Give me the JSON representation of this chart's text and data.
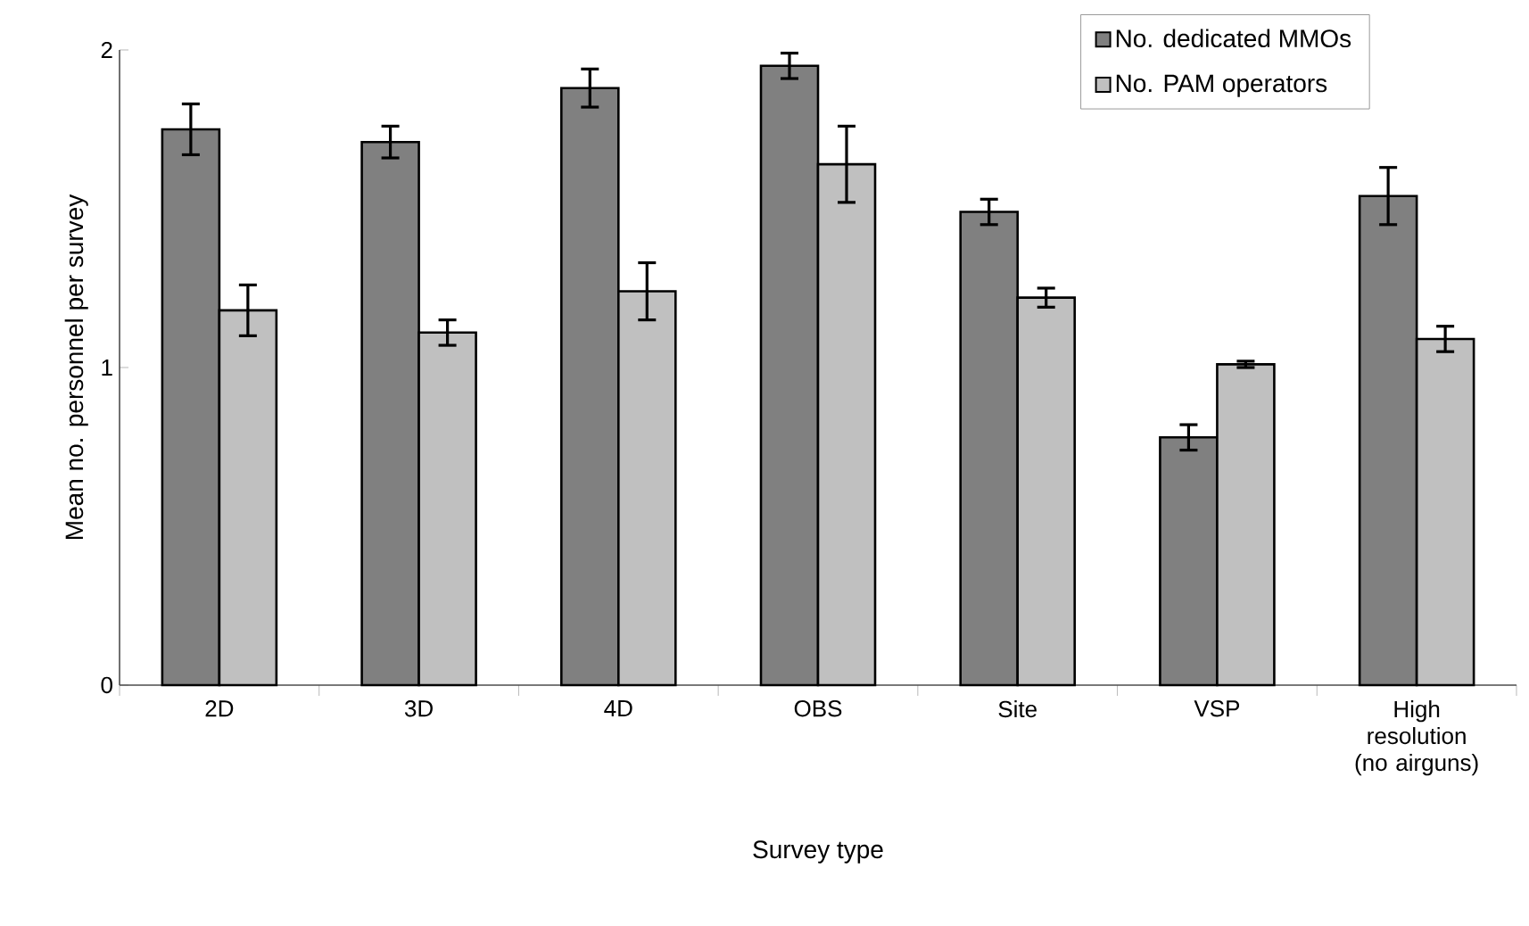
{
  "chart_data": {
    "type": "bar",
    "xlabel": "Survey type",
    "ylabel": "Mean no. personnel per survey",
    "categories": [
      "2D",
      "3D",
      "4D",
      "OBS",
      "Site",
      "VSP",
      "High resolution (no airguns)"
    ],
    "series": [
      {
        "name": "No. dedicated MMOs",
        "color": "#808080",
        "values": [
          1.75,
          1.71,
          1.88,
          1.95,
          1.49,
          0.78,
          1.54
        ],
        "errors": [
          0.08,
          0.05,
          0.06,
          0.04,
          0.04,
          0.04,
          0.09
        ]
      },
      {
        "name": "No. PAM operators",
        "color": "#c0c0c0",
        "values": [
          1.18,
          1.11,
          1.24,
          1.64,
          1.22,
          1.01,
          1.09
        ],
        "errors": [
          0.08,
          0.04,
          0.09,
          0.12,
          0.03,
          0.01,
          0.04
        ]
      }
    ],
    "ylim": [
      0,
      2
    ],
    "yticks": [
      0,
      1,
      2
    ],
    "grid": false,
    "legend": "top right"
  }
}
